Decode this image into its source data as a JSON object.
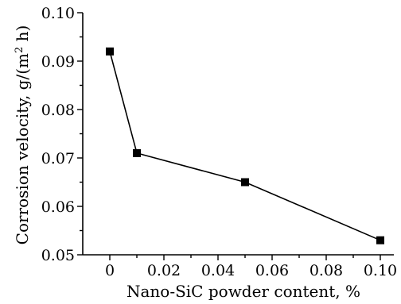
{
  "chart_data": {
    "type": "line",
    "title": "",
    "xlabel": "Nano-SiC powder content, %",
    "ylabel_main": "Corrosion velocity, g/(m",
    "ylabel_sup": "2",
    "ylabel_tail": " h)",
    "xlim": [
      -0.01,
      0.105
    ],
    "ylim": [
      0.05,
      0.1
    ],
    "x_ticks": [
      0,
      0.02,
      0.04,
      0.06,
      0.08,
      0.1
    ],
    "x_tick_labels": [
      "0",
      "0.02",
      "0.04",
      "0.06",
      "0.08",
      "0.10"
    ],
    "x_minor_ticks": [
      0.01,
      0.03,
      0.05,
      0.07,
      0.09
    ],
    "y_ticks": [
      0.05,
      0.06,
      0.07,
      0.08,
      0.09,
      0.1
    ],
    "y_tick_labels": [
      "0.05",
      "0.06",
      "0.07",
      "0.08",
      "0.09",
      "0.10"
    ],
    "y_minor_ticks": [
      0.055,
      0.065,
      0.075,
      0.085,
      0.095
    ],
    "grid": false,
    "marker": "square",
    "series": [
      {
        "x": [
          0,
          0.01,
          0.05,
          0.1
        ],
        "values": [
          0.092,
          0.071,
          0.065,
          0.053
        ]
      }
    ]
  }
}
